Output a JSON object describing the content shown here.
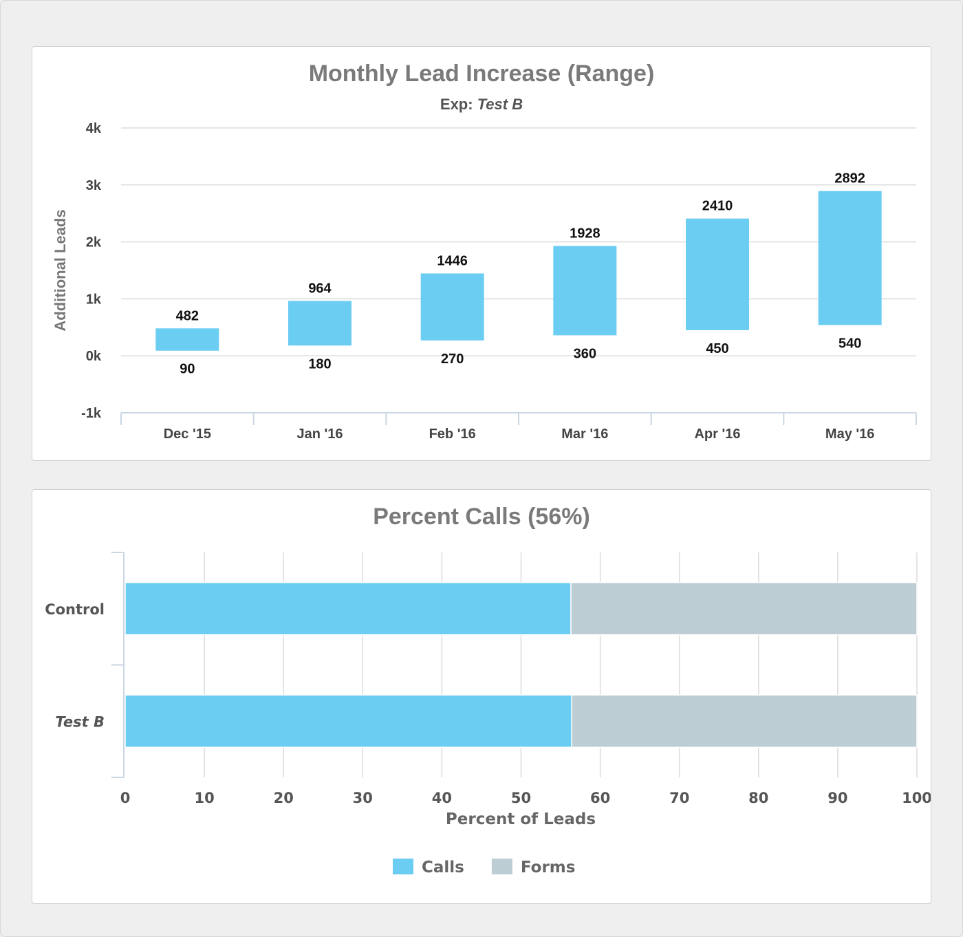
{
  "chart_data": [
    {
      "type": "bar",
      "subtype": "range",
      "title": "Monthly Lead Increase (Range)",
      "subtitle_prefix": "Exp: ",
      "subtitle_value": "Test B",
      "ylabel": "Additional Leads",
      "xlabel": "",
      "ylim": [
        -1000,
        4000
      ],
      "yticks": [
        -1000,
        0,
        1000,
        2000,
        3000,
        4000
      ],
      "ytick_labels": [
        "-1k",
        "0k",
        "1k",
        "2k",
        "3k",
        "4k"
      ],
      "categories": [
        "Dec '15",
        "Jan '16",
        "Feb '16",
        "Mar '16",
        "Apr '16",
        "May '16"
      ],
      "low": [
        90,
        180,
        270,
        360,
        450,
        540
      ],
      "high": [
        482,
        964,
        1446,
        1928,
        2410,
        2892
      ],
      "low_labels": [
        "90",
        "180",
        "270",
        "360",
        "450",
        "540"
      ],
      "high_labels": [
        "482",
        "964",
        "1446",
        "1928",
        "2410",
        "2892"
      ],
      "color": "#6ccdf3",
      "grid": true
    },
    {
      "type": "bar",
      "orientation": "horizontal",
      "stacked": true,
      "title": "Percent Calls (56%)",
      "xlabel": "Percent of Leads",
      "xlim": [
        0,
        100
      ],
      "xticks": [
        0,
        10,
        20,
        30,
        40,
        50,
        60,
        70,
        80,
        90,
        100
      ],
      "xtick_labels": [
        "0",
        "10",
        "20",
        "30",
        "40",
        "50",
        "60",
        "70",
        "80",
        "90",
        "100"
      ],
      "categories": [
        "Control",
        "Test B"
      ],
      "series": [
        {
          "name": "Calls",
          "values": [
            56.3,
            56.4
          ],
          "color": "#6ccdf3"
        },
        {
          "name": "Forms",
          "values": [
            43.7,
            43.6
          ],
          "color": "#bccdd4"
        }
      ],
      "legend_position": "bottom-center",
      "grid": true
    }
  ]
}
